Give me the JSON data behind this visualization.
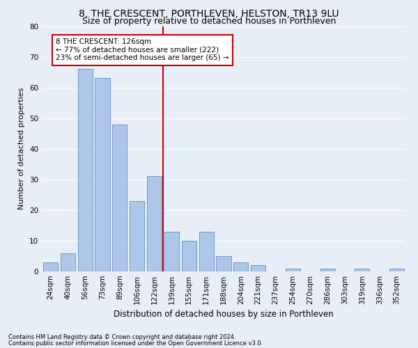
{
  "title1": "8, THE CRESCENT, PORTHLEVEN, HELSTON, TR13 9LU",
  "title2": "Size of property relative to detached houses in Porthleven",
  "xlabel": "Distribution of detached houses by size in Porthleven",
  "ylabel": "Number of detached properties",
  "footer1": "Contains HM Land Registry data © Crown copyright and database right 2024.",
  "footer2": "Contains public sector information licensed under the Open Government Licence v3.0.",
  "categories": [
    "24sqm",
    "40sqm",
    "56sqm",
    "73sqm",
    "89sqm",
    "106sqm",
    "122sqm",
    "139sqm",
    "155sqm",
    "171sqm",
    "188sqm",
    "204sqm",
    "221sqm",
    "237sqm",
    "254sqm",
    "270sqm",
    "286sqm",
    "303sqm",
    "319sqm",
    "336sqm",
    "352sqm"
  ],
  "values": [
    3,
    6,
    66,
    63,
    48,
    23,
    31,
    13,
    10,
    13,
    5,
    3,
    2,
    0,
    1,
    0,
    1,
    0,
    1,
    0,
    1
  ],
  "bar_color": "#aec6e8",
  "bar_edgecolor": "#5a8fc0",
  "property_line_x": 6.5,
  "annotation_text": "8 THE CRESCENT: 126sqm\n← 77% of detached houses are smaller (222)\n23% of semi-detached houses are larger (65) →",
  "annotation_box_color": "#ffffff",
  "annotation_box_edgecolor": "#cc0000",
  "line_color": "#cc0000",
  "bg_color": "#e8eef7",
  "plot_bg_color": "#e8eef7",
  "ylim": [
    0,
    80
  ],
  "yticks": [
    0,
    10,
    20,
    30,
    40,
    50,
    60,
    70,
    80
  ],
  "title1_fontsize": 10,
  "title2_fontsize": 9,
  "xlabel_fontsize": 8.5,
  "ylabel_fontsize": 8,
  "tick_fontsize": 7.5,
  "footer_fontsize": 6,
  "annot_fontsize": 7.5
}
